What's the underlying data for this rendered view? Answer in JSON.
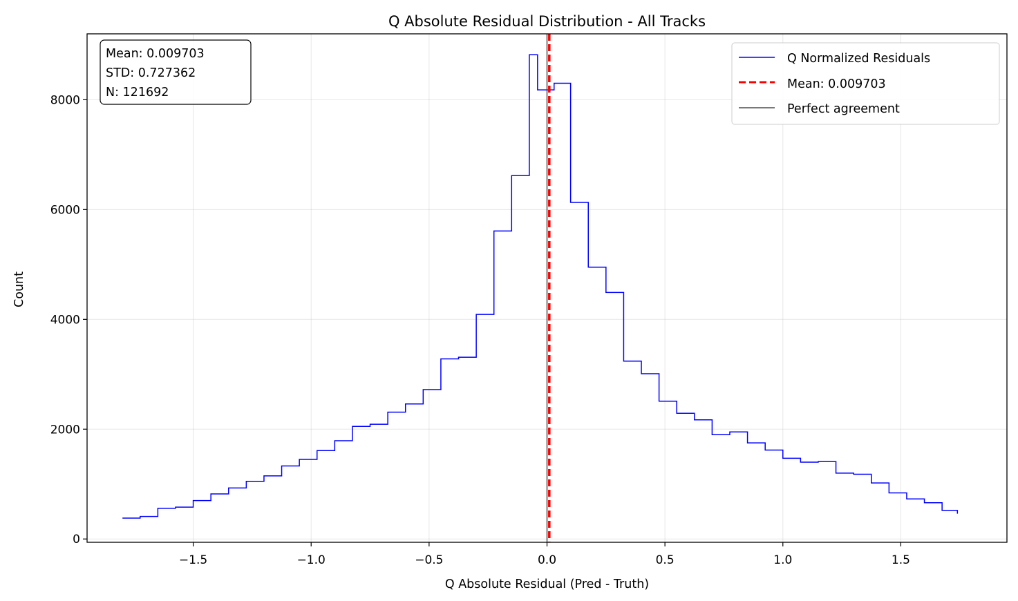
{
  "chart_data": {
    "type": "histogram",
    "title": "Q Absolute Residual Distribution - All Tracks",
    "xlabel": "Q Absolute Residual (Pred - Truth)",
    "ylabel": "Count",
    "xlim": [
      -1.95,
      1.95
    ],
    "ylim": [
      -60,
      9200
    ],
    "x_ticks": [
      -1.5,
      -1.0,
      -0.5,
      0.0,
      0.5,
      1.0,
      1.5
    ],
    "x_tick_labels": [
      "−1.5",
      "−1.0",
      "−0.5",
      "0.0",
      "0.5",
      "1.0",
      "1.5"
    ],
    "y_ticks": [
      0,
      2000,
      4000,
      6000,
      8000
    ],
    "y_tick_labels": [
      "0",
      "2000",
      "4000",
      "6000",
      "8000"
    ],
    "grid": true,
    "bin_edges": [
      -1.8,
      -1.725,
      -1.65,
      -1.575,
      -1.5,
      -1.425,
      -1.35,
      -1.275,
      -1.2,
      -1.125,
      -1.05,
      -0.975,
      -0.9,
      -0.825,
      -0.75,
      -0.675,
      -0.6,
      -0.525,
      -0.45,
      -0.375,
      -0.3,
      -0.225,
      -0.15,
      -0.075,
      -0.04,
      0.03,
      0.1,
      0.175,
      0.25,
      0.325,
      0.4,
      0.475,
      0.55,
      0.625,
      0.7,
      0.775,
      0.85,
      0.925,
      1.0,
      1.075,
      1.15,
      1.225,
      1.3,
      1.375,
      1.45,
      1.525,
      1.6,
      1.675,
      1.74
    ],
    "counts": [
      380,
      410,
      560,
      580,
      700,
      820,
      930,
      1050,
      1150,
      1330,
      1450,
      1610,
      1790,
      2050,
      2090,
      2310,
      2460,
      2720,
      3280,
      3310,
      4090,
      5610,
      6620,
      8820,
      8180,
      8300,
      6130,
      4950,
      4490,
      3240,
      3010,
      2510,
      2290,
      2170,
      1900,
      1950,
      1750,
      1620,
      1470,
      1400,
      1410,
      1200,
      1180,
      1020,
      840,
      730,
      660,
      520
    ],
    "last_bin_end_count": 460,
    "series": [
      {
        "name": "Q Normalized Residuals",
        "color": "#0000ff",
        "style": "solid"
      },
      {
        "name": "Mean: 0.009703",
        "color": "#ff0000",
        "style": "dashed",
        "x": 0.009703
      },
      {
        "name": "Perfect agreement",
        "color": "#4d4d4d",
        "style": "solid",
        "x": 0.0
      }
    ],
    "legend_placement": "top-right",
    "stats_box": {
      "mean": "Mean: 0.009703",
      "std": "STD: 0.727362",
      "n": "N: 121692"
    }
  }
}
